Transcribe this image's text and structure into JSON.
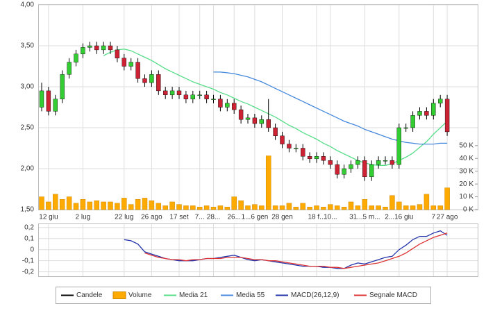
{
  "chart_data": [
    {
      "type": "candlestick",
      "categories": [
        null,
        "12 giu",
        null,
        null,
        null,
        null,
        "2 lug",
        null,
        null,
        null,
        null,
        null,
        "22 lug",
        null,
        null,
        null,
        "26 ago",
        null,
        null,
        null,
        "17 set",
        null,
        null,
        "7...",
        null,
        "28...",
        null,
        null,
        "26...",
        null,
        null,
        "1...6 gen",
        null,
        null,
        null,
        "28 gen",
        null,
        null,
        null,
        null,
        "18 f...",
        null,
        "10...",
        null,
        null,
        null,
        null,
        "31...5 m...",
        null,
        null,
        null,
        null,
        "2...16 giu",
        null,
        null,
        null,
        null,
        "7",
        null,
        "27 ago"
      ],
      "ylim": [
        1.5,
        4.0
      ],
      "yticks": [
        {
          "value": 1.5,
          "label": "1,50"
        },
        {
          "value": 2.0,
          "label": "2,00"
        },
        {
          "value": 2.5,
          "label": "2,50"
        },
        {
          "value": 3.0,
          "label": "3,00"
        },
        {
          "value": 3.5,
          "label": "3,50"
        },
        {
          "value": 4.0,
          "label": "4,00"
        }
      ],
      "y2lim": [
        0,
        160000
      ],
      "y2ticks": [
        {
          "value": 0,
          "label": "0 K"
        },
        {
          "value": 10000,
          "label": "10 K"
        },
        {
          "value": 20000,
          "label": "20 K"
        },
        {
          "value": 30000,
          "label": "30 K"
        },
        {
          "value": 40000,
          "label": "40 K"
        },
        {
          "value": 50000,
          "label": "50 K"
        }
      ],
      "grid": true,
      "series": [
        {
          "name": "Candele",
          "type": "candlestick",
          "color": "#000000",
          "up_color": "#33cc33",
          "down_color": "#cc2233",
          "open": [
            2.75,
            2.95,
            2.7,
            2.85,
            3.15,
            3.3,
            3.4,
            3.48,
            3.5,
            3.45,
            3.5,
            3.45,
            3.35,
            3.25,
            3.3,
            3.1,
            3.05,
            3.15,
            2.95,
            2.9,
            2.95,
            2.9,
            2.85,
            2.9,
            2.9,
            2.85,
            2.85,
            2.75,
            2.8,
            2.72,
            2.6,
            2.62,
            2.55,
            2.6,
            2.5,
            2.4,
            2.3,
            2.25,
            2.25,
            2.15,
            2.12,
            2.15,
            2.1,
            2.05,
            1.93,
            2.0,
            2.05,
            2.1,
            1.9,
            2.05,
            2.1,
            2.1,
            2.05,
            2.5,
            2.5,
            2.65,
            2.7,
            2.65,
            2.8,
            2.85
          ],
          "high": [
            3.05,
            3.0,
            2.9,
            3.2,
            3.35,
            3.45,
            3.53,
            3.55,
            3.55,
            3.55,
            3.55,
            3.5,
            3.4,
            3.35,
            3.35,
            3.15,
            3.2,
            3.2,
            3.0,
            3.0,
            3.0,
            2.95,
            2.95,
            2.95,
            2.95,
            2.9,
            2.9,
            2.85,
            2.85,
            2.77,
            2.67,
            2.67,
            2.65,
            2.85,
            2.55,
            2.45,
            2.35,
            2.3,
            2.3,
            2.2,
            2.2,
            2.2,
            2.15,
            2.1,
            2.05,
            2.1,
            2.15,
            2.15,
            2.1,
            2.15,
            2.15,
            2.15,
            2.55,
            2.55,
            2.7,
            2.75,
            2.75,
            2.85,
            2.9,
            2.9
          ],
          "low": [
            2.7,
            2.65,
            2.65,
            2.8,
            3.1,
            3.25,
            3.35,
            3.43,
            3.4,
            3.4,
            3.4,
            3.3,
            3.2,
            3.2,
            3.05,
            3.0,
            3.0,
            2.9,
            2.85,
            2.85,
            2.85,
            2.8,
            2.8,
            2.85,
            2.8,
            2.8,
            2.7,
            2.7,
            2.67,
            2.55,
            2.55,
            2.5,
            2.5,
            2.45,
            2.35,
            2.25,
            2.2,
            2.2,
            2.1,
            2.07,
            2.07,
            2.05,
            2.0,
            1.88,
            1.88,
            1.95,
            2.0,
            1.85,
            1.85,
            2.0,
            2.05,
            2.0,
            2.0,
            2.45,
            2.45,
            2.6,
            2.6,
            2.6,
            2.75,
            2.4
          ],
          "close": [
            2.95,
            2.7,
            2.85,
            3.15,
            3.3,
            3.4,
            3.48,
            3.5,
            3.45,
            3.5,
            3.45,
            3.35,
            3.25,
            3.3,
            3.1,
            3.05,
            3.15,
            2.95,
            2.9,
            2.95,
            2.9,
            2.85,
            2.9,
            2.9,
            2.85,
            2.85,
            2.75,
            2.8,
            2.72,
            2.6,
            2.62,
            2.55,
            2.6,
            2.5,
            2.4,
            2.3,
            2.25,
            2.25,
            2.15,
            2.12,
            2.15,
            2.1,
            2.05,
            1.93,
            2.0,
            2.05,
            2.1,
            1.9,
            2.05,
            2.1,
            2.1,
            2.05,
            2.5,
            2.5,
            2.65,
            2.7,
            2.65,
            2.8,
            2.85,
            2.45
          ]
        },
        {
          "name": "Volume",
          "type": "bar",
          "axis": "y2",
          "color": "#ffaa00",
          "values": [
            10000,
            6000,
            12000,
            8000,
            10000,
            5000,
            8000,
            6000,
            7000,
            6000,
            6000,
            5000,
            9000,
            4000,
            8000,
            9000,
            7000,
            5000,
            3000,
            6000,
            4000,
            3000,
            3000,
            2000,
            3000,
            2000,
            3000,
            2000,
            10000,
            7000,
            3000,
            4000,
            3000,
            42000,
            3000,
            3000,
            5000,
            2000,
            5000,
            2000,
            3000,
            2000,
            4000,
            3000,
            2000,
            6000,
            3000,
            8000,
            3000,
            3000,
            2000,
            11000,
            6000,
            3000,
            3000,
            4000,
            12000,
            3000,
            3000,
            17000
          ]
        },
        {
          "name": "Media 21",
          "type": "line",
          "color": "#55dd88",
          "values": [
            null,
            null,
            null,
            null,
            null,
            null,
            null,
            null,
            null,
            3.38,
            3.42,
            3.45,
            3.46,
            3.44,
            3.4,
            3.36,
            3.32,
            3.27,
            3.22,
            3.18,
            3.14,
            3.1,
            3.06,
            3.03,
            3.0,
            2.97,
            2.93,
            2.9,
            2.86,
            2.82,
            2.79,
            2.75,
            2.71,
            2.67,
            2.63,
            2.58,
            2.53,
            2.49,
            2.44,
            2.4,
            2.36,
            2.31,
            2.27,
            2.22,
            2.18,
            2.14,
            2.1,
            2.07,
            2.05,
            2.04,
            2.04,
            2.06,
            2.1,
            2.14,
            2.19,
            2.26,
            2.33,
            2.42,
            2.5,
            2.58
          ]
        },
        {
          "name": "Media 55",
          "type": "line",
          "color": "#4488dd",
          "values": [
            null,
            null,
            null,
            null,
            null,
            null,
            null,
            null,
            null,
            null,
            null,
            null,
            null,
            null,
            null,
            null,
            null,
            null,
            null,
            null,
            null,
            null,
            null,
            null,
            null,
            3.18,
            3.18,
            3.17,
            3.16,
            3.14,
            3.12,
            3.09,
            3.06,
            3.02,
            2.98,
            2.94,
            2.9,
            2.86,
            2.82,
            2.78,
            2.74,
            2.7,
            2.66,
            2.62,
            2.58,
            2.55,
            2.52,
            2.48,
            2.45,
            2.42,
            2.39,
            2.36,
            2.34,
            2.32,
            2.31,
            2.3,
            2.3,
            2.3,
            2.31,
            2.31
          ]
        }
      ]
    },
    {
      "type": "line",
      "ylim": [
        -0.24,
        0.23
      ],
      "yticks": [
        {
          "value": 0.2,
          "label": "0,2"
        },
        {
          "value": 0.1,
          "label": "0,1"
        },
        0,
        {
          "value": -0.1,
          "label": "-0,1"
        },
        {
          "value": -0.2,
          "label": "-0,2"
        }
      ],
      "series": [
        {
          "name": "MACD(26,12,9)",
          "color": "#2233aa",
          "values": [
            null,
            null,
            null,
            null,
            null,
            null,
            null,
            null,
            null,
            null,
            null,
            null,
            0.09,
            0.08,
            0.05,
            -0.02,
            -0.04,
            -0.06,
            -0.08,
            -0.09,
            -0.1,
            -0.1,
            -0.1,
            -0.09,
            -0.08,
            -0.08,
            -0.07,
            -0.06,
            -0.05,
            -0.07,
            -0.09,
            -0.1,
            -0.09,
            -0.1,
            -0.11,
            -0.12,
            -0.13,
            -0.14,
            -0.15,
            -0.15,
            -0.15,
            -0.16,
            -0.16,
            -0.17,
            -0.17,
            -0.14,
            -0.12,
            -0.13,
            -0.11,
            -0.09,
            -0.07,
            -0.06,
            0.0,
            0.04,
            0.09,
            0.12,
            0.12,
            0.15,
            0.17,
            0.13
          ]
        },
        {
          "name": "Segnale MACD",
          "color": "#dd3333",
          "values": [
            null,
            null,
            null,
            null,
            null,
            null,
            null,
            null,
            null,
            null,
            null,
            null,
            null,
            null,
            null,
            -0.03,
            -0.05,
            -0.07,
            -0.08,
            -0.09,
            -0.09,
            -0.1,
            -0.09,
            -0.09,
            -0.08,
            -0.08,
            -0.08,
            -0.07,
            -0.07,
            -0.07,
            -0.08,
            -0.09,
            -0.09,
            -0.1,
            -0.1,
            -0.11,
            -0.12,
            -0.13,
            -0.14,
            -0.15,
            -0.15,
            -0.15,
            -0.16,
            -0.16,
            -0.17,
            -0.16,
            -0.15,
            -0.14,
            -0.13,
            -0.12,
            -0.1,
            -0.08,
            -0.06,
            -0.03,
            0.01,
            0.05,
            0.08,
            0.11,
            0.13,
            0.15
          ]
        }
      ]
    }
  ]
}
